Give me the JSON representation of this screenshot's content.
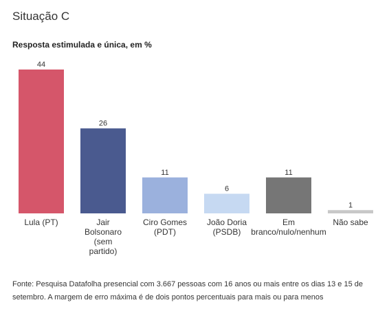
{
  "header": {
    "title": "Situação C",
    "subtitle": "Resposta estimulada e única, em %"
  },
  "source": "Fonte: Pesquisa Datafolha presencial com 3.667 pessoas com 16 anos ou mais entre os dias 13 e 15 de setembro. A margem de erro máxima é de dois pontos percentuais para mais ou para menos",
  "chart_data": {
    "type": "bar",
    "title": "Situação C",
    "subtitle": "Resposta estimulada e única, em %",
    "xlabel": "",
    "ylabel": "",
    "ylim": [
      0,
      44
    ],
    "grid": false,
    "legend": "none",
    "categories": [
      "Lula (PT)",
      "Jair Bolsonaro (sem partido)",
      "Ciro Gomes (PDT)",
      "João Doria (PSDB)",
      "Em branco/nulo/nenhum",
      "Não sabe"
    ],
    "category_lines": [
      [
        "Lula (PT)"
      ],
      [
        "Jair",
        "Bolsonaro",
        "(sem",
        "partido)"
      ],
      [
        "Ciro Gomes",
        "(PDT)"
      ],
      [
        "João Doria",
        "(PSDB)"
      ],
      [
        "Em",
        "branco/nulo/nenhum"
      ],
      [
        "Não sabe"
      ]
    ],
    "values": [
      44,
      26,
      11,
      6,
      11,
      1
    ],
    "colors": [
      "#d5566a",
      "#4a5a8f",
      "#9bb1dd",
      "#c6d9f2",
      "#767676",
      "#c8c8c8"
    ]
  }
}
